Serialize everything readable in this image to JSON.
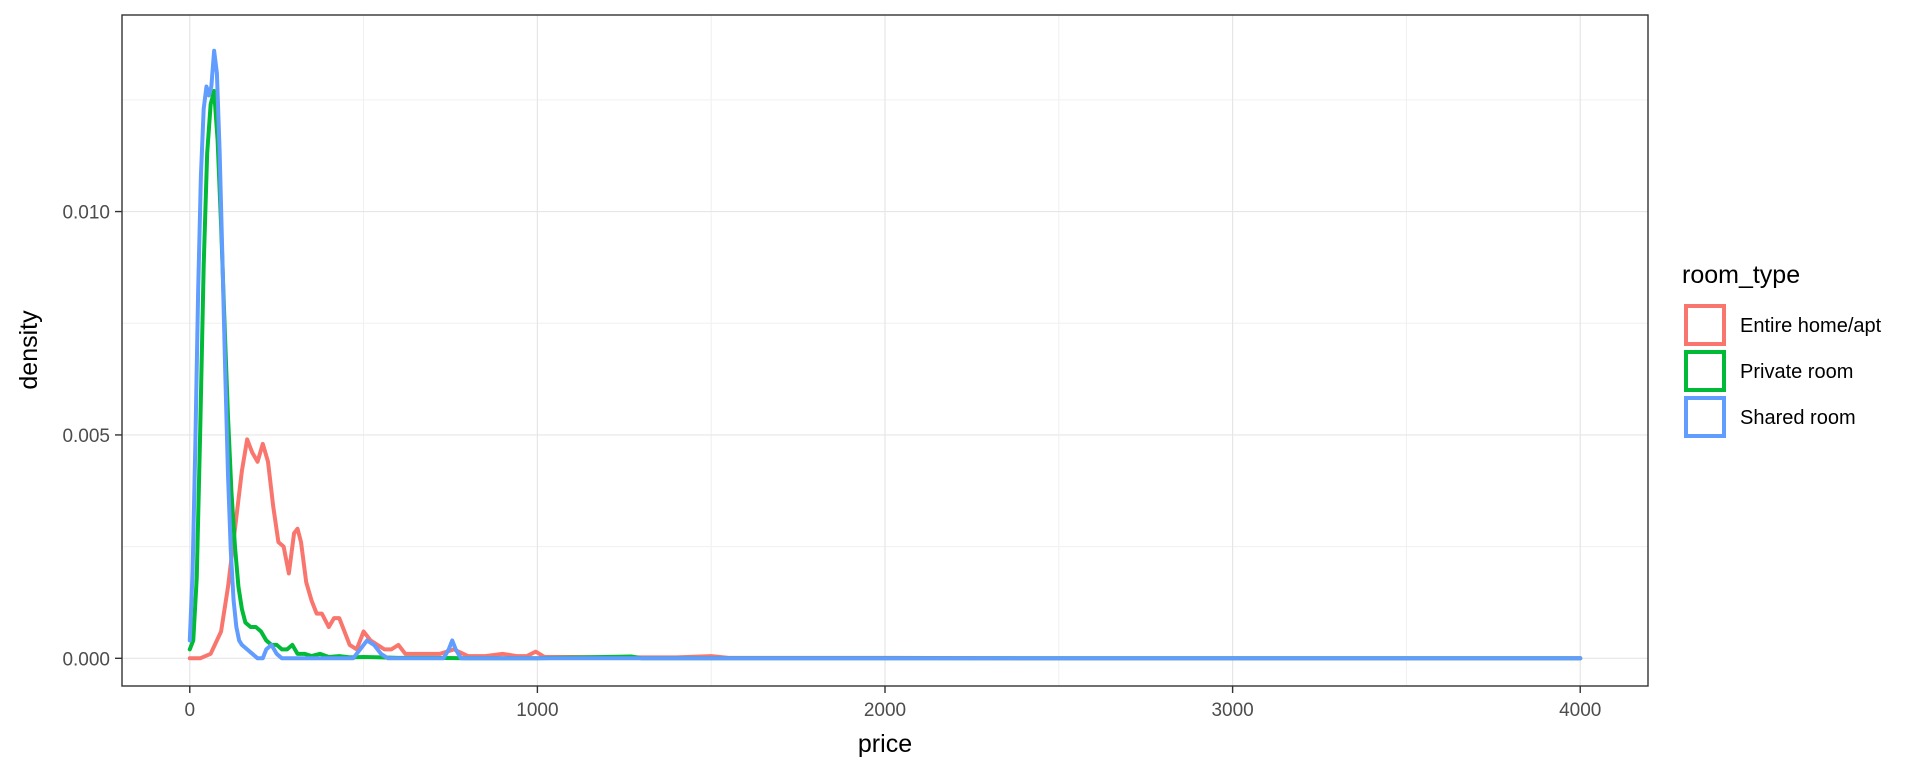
{
  "chart_data": {
    "type": "line",
    "title": "",
    "xlabel": "price",
    "ylabel": "density",
    "xlim": [
      -195,
      4195
    ],
    "ylim": [
      -0.00062,
      0.0144
    ],
    "x_ticks": [
      0,
      1000,
      2000,
      3000,
      4000
    ],
    "x_tick_labels": [
      "0",
      "1000",
      "2000",
      "3000",
      "4000"
    ],
    "y_ticks": [
      0,
      0.005,
      0.01
    ],
    "y_tick_labels": [
      "0.000",
      "0.005",
      "0.010"
    ],
    "grid": true,
    "legend_title": "room_type",
    "legend_position": "right",
    "series": [
      {
        "name": "Entire home/apt",
        "color": "#F8766D",
        "points": [
          [
            0,
            0
          ],
          [
            30,
            0
          ],
          [
            60,
            0.0001
          ],
          [
            90,
            0.0006
          ],
          [
            110,
            0.0016
          ],
          [
            130,
            0.0029
          ],
          [
            150,
            0.0042
          ],
          [
            165,
            0.0049
          ],
          [
            180,
            0.0046
          ],
          [
            195,
            0.0044
          ],
          [
            210,
            0.0048
          ],
          [
            225,
            0.0044
          ],
          [
            240,
            0.0034
          ],
          [
            255,
            0.0026
          ],
          [
            270,
            0.0025
          ],
          [
            285,
            0.0019
          ],
          [
            300,
            0.0028
          ],
          [
            310,
            0.0029
          ],
          [
            320,
            0.0026
          ],
          [
            335,
            0.0017
          ],
          [
            350,
            0.0013
          ],
          [
            365,
            0.001
          ],
          [
            380,
            0.001
          ],
          [
            400,
            0.0007
          ],
          [
            415,
            0.0009
          ],
          [
            430,
            0.0009
          ],
          [
            445,
            0.0006
          ],
          [
            460,
            0.0003
          ],
          [
            480,
            0.0002
          ],
          [
            500,
            0.0006
          ],
          [
            520,
            0.0004
          ],
          [
            540,
            0.0003
          ],
          [
            560,
            0.0002
          ],
          [
            580,
            0.0002
          ],
          [
            600,
            0.0003
          ],
          [
            620,
            0.0001
          ],
          [
            650,
            0.0001
          ],
          [
            680,
            0.0001
          ],
          [
            720,
            0.0001
          ],
          [
            760,
            0.0002
          ],
          [
            800,
            5e-05
          ],
          [
            850,
            5e-05
          ],
          [
            900,
            0.0001
          ],
          [
            940,
            5e-05
          ],
          [
            970,
            5e-05
          ],
          [
            995,
            0.00015
          ],
          [
            1020,
            3e-05
          ],
          [
            1100,
            3e-05
          ],
          [
            1200,
            2e-05
          ],
          [
            1300,
            2e-05
          ],
          [
            1400,
            2e-05
          ],
          [
            1500,
            5e-05
          ],
          [
            1550,
            1e-05
          ],
          [
            1700,
            1e-05
          ],
          [
            2000,
            1e-05
          ],
          [
            2500,
            0
          ],
          [
            3000,
            0
          ],
          [
            3500,
            0
          ],
          [
            4000,
            0
          ]
        ]
      },
      {
        "name": "Private room",
        "color": "#00BA38",
        "points": [
          [
            0,
            0.0002
          ],
          [
            10,
            0.0004
          ],
          [
            20,
            0.0018
          ],
          [
            30,
            0.0051
          ],
          [
            40,
            0.0088
          ],
          [
            50,
            0.0113
          ],
          [
            60,
            0.0124
          ],
          [
            70,
            0.0127
          ],
          [
            80,
            0.0116
          ],
          [
            90,
            0.0097
          ],
          [
            100,
            0.0075
          ],
          [
            110,
            0.0054
          ],
          [
            120,
            0.0037
          ],
          [
            130,
            0.0025
          ],
          [
            140,
            0.0016
          ],
          [
            150,
            0.0011
          ],
          [
            160,
            0.0008
          ],
          [
            175,
            0.0007
          ],
          [
            190,
            0.0007
          ],
          [
            205,
            0.0006
          ],
          [
            220,
            0.0004
          ],
          [
            235,
            0.0003
          ],
          [
            250,
            0.0003
          ],
          [
            265,
            0.0002
          ],
          [
            280,
            0.0002
          ],
          [
            295,
            0.0003
          ],
          [
            310,
            0.0001
          ],
          [
            330,
            0.0001
          ],
          [
            350,
            5e-05
          ],
          [
            375,
            0.0001
          ],
          [
            400,
            3e-05
          ],
          [
            430,
            5e-05
          ],
          [
            460,
            2e-05
          ],
          [
            500,
            3e-05
          ],
          [
            550,
            2e-05
          ],
          [
            600,
            1e-05
          ],
          [
            700,
            1e-05
          ],
          [
            800,
            0
          ],
          [
            900,
            0
          ],
          [
            1000,
            0
          ],
          [
            1270,
            4e-05
          ],
          [
            1300,
            0
          ],
          [
            2000,
            0
          ],
          [
            3000,
            0
          ],
          [
            4000,
            0
          ]
        ]
      },
      {
        "name": "Shared room",
        "color": "#619CFF",
        "points": [
          [
            0,
            0.0004
          ],
          [
            8,
            0.0019
          ],
          [
            16,
            0.0048
          ],
          [
            24,
            0.0082
          ],
          [
            32,
            0.0108
          ],
          [
            40,
            0.0123
          ],
          [
            48,
            0.0128
          ],
          [
            55,
            0.0126
          ],
          [
            62,
            0.0128
          ],
          [
            70,
            0.0136
          ],
          [
            78,
            0.0131
          ],
          [
            86,
            0.0113
          ],
          [
            94,
            0.0089
          ],
          [
            102,
            0.0064
          ],
          [
            110,
            0.0041
          ],
          [
            118,
            0.0024
          ],
          [
            126,
            0.0013
          ],
          [
            134,
            0.0007
          ],
          [
            142,
            0.0004
          ],
          [
            150,
            0.0003
          ],
          [
            165,
            0.0002
          ],
          [
            180,
            0.0001
          ],
          [
            195,
            0
          ],
          [
            210,
            0
          ],
          [
            220,
            0.0002
          ],
          [
            235,
            0.0003
          ],
          [
            250,
            0.0001
          ],
          [
            265,
            0
          ],
          [
            300,
            0
          ],
          [
            400,
            0
          ],
          [
            470,
            0
          ],
          [
            490,
            0.0002
          ],
          [
            510,
            0.0004
          ],
          [
            530,
            0.0003
          ],
          [
            550,
            0.0001
          ],
          [
            570,
            0
          ],
          [
            700,
            0
          ],
          [
            730,
            0
          ],
          [
            745,
            0.0002
          ],
          [
            755,
            0.0004
          ],
          [
            765,
            0.0002
          ],
          [
            780,
            0
          ],
          [
            900,
            0
          ],
          [
            1500,
            0
          ],
          [
            2000,
            0
          ],
          [
            3000,
            0
          ],
          [
            4000,
            0
          ]
        ]
      }
    ]
  }
}
